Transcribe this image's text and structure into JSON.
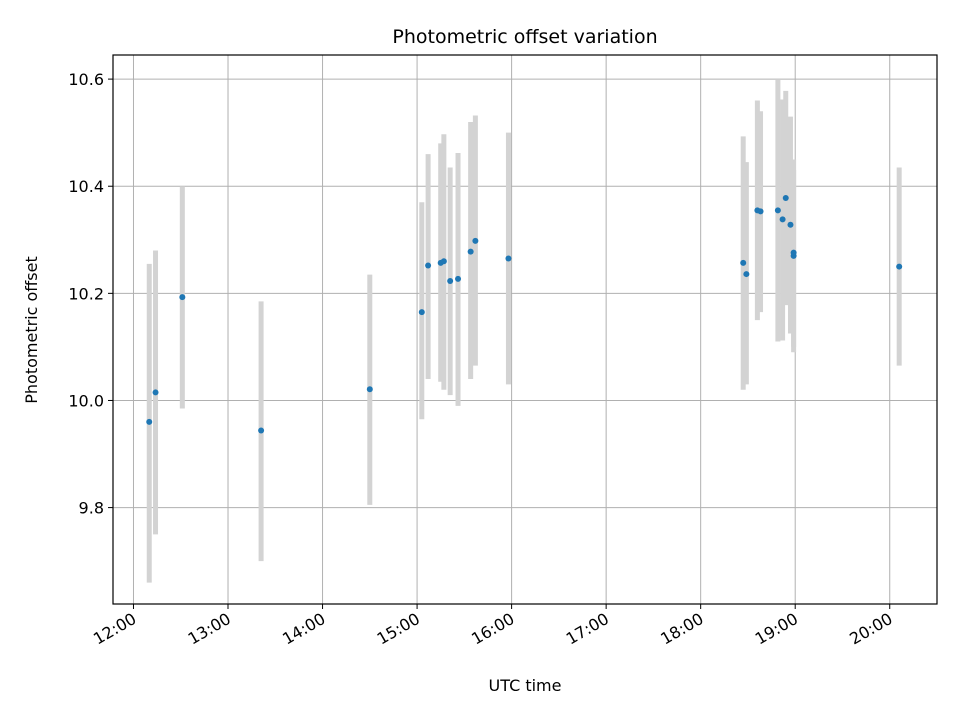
{
  "chart_data": {
    "type": "scatter",
    "title": "Photometric offset variation",
    "xlabel": "UTC time",
    "ylabel": "Photometric offset",
    "xlim": [
      "11:47",
      "20:30"
    ],
    "ylim": [
      9.62,
      10.645
    ],
    "grid": true,
    "x_ticks": [
      "12:00",
      "13:00",
      "14:00",
      "15:00",
      "16:00",
      "17:00",
      "18:00",
      "19:00",
      "20:00"
    ],
    "y_ticks": [
      "9.8",
      "10.0",
      "10.2",
      "10.4",
      "10.6"
    ],
    "colors": {
      "point": "#1f77b4",
      "errorbar": "#d3d3d3",
      "grid": "#b0b0b0"
    },
    "points": [
      {
        "x": "12:10",
        "y": 9.96,
        "err_low": 9.66,
        "err_high": 10.255
      },
      {
        "x": "12:14",
        "y": 10.015,
        "err_low": 9.75,
        "err_high": 10.28
      },
      {
        "x": "12:31",
        "y": 10.193,
        "err_low": 9.985,
        "err_high": 10.4
      },
      {
        "x": "13:21",
        "y": 9.944,
        "err_low": 9.7,
        "err_high": 10.185
      },
      {
        "x": "14:30",
        "y": 10.021,
        "err_low": 9.805,
        "err_high": 10.235
      },
      {
        "x": "15:03",
        "y": 10.165,
        "err_low": 9.965,
        "err_high": 10.37
      },
      {
        "x": "15:07",
        "y": 10.252,
        "err_low": 10.04,
        "err_high": 10.46
      },
      {
        "x": "15:15",
        "y": 10.257,
        "err_low": 10.035,
        "err_high": 10.48
      },
      {
        "x": "15:17",
        "y": 10.26,
        "err_low": 10.02,
        "err_high": 10.497
      },
      {
        "x": "15:21",
        "y": 10.223,
        "err_low": 10.01,
        "err_high": 10.435
      },
      {
        "x": "15:26",
        "y": 10.227,
        "err_low": 9.99,
        "err_high": 10.462
      },
      {
        "x": "15:34",
        "y": 10.278,
        "err_low": 10.04,
        "err_high": 10.52
      },
      {
        "x": "15:37",
        "y": 10.298,
        "err_low": 10.065,
        "err_high": 10.532
      },
      {
        "x": "15:58",
        "y": 10.265,
        "err_low": 10.03,
        "err_high": 10.5
      },
      {
        "x": "18:27",
        "y": 10.257,
        "err_low": 10.02,
        "err_high": 10.493
      },
      {
        "x": "18:29",
        "y": 10.236,
        "err_low": 10.03,
        "err_high": 10.445
      },
      {
        "x": "18:36",
        "y": 10.355,
        "err_low": 10.15,
        "err_high": 10.56
      },
      {
        "x": "18:38",
        "y": 10.353,
        "err_low": 10.165,
        "err_high": 10.54
      },
      {
        "x": "18:49",
        "y": 10.355,
        "err_low": 10.11,
        "err_high": 10.6
      },
      {
        "x": "18:52",
        "y": 10.338,
        "err_low": 10.112,
        "err_high": 10.562
      },
      {
        "x": "18:54",
        "y": 10.378,
        "err_low": 10.178,
        "err_high": 10.578
      },
      {
        "x": "18:57",
        "y": 10.328,
        "err_low": 10.125,
        "err_high": 10.53
      },
      {
        "x": "18:59",
        "y": 10.27,
        "err_low": 10.09,
        "err_high": 10.45
      },
      {
        "x": "18:59",
        "y": 10.276,
        "err_low": 10.1,
        "err_high": 10.43
      },
      {
        "x": "20:06",
        "y": 10.25,
        "err_low": 10.065,
        "err_high": 10.435
      }
    ]
  }
}
